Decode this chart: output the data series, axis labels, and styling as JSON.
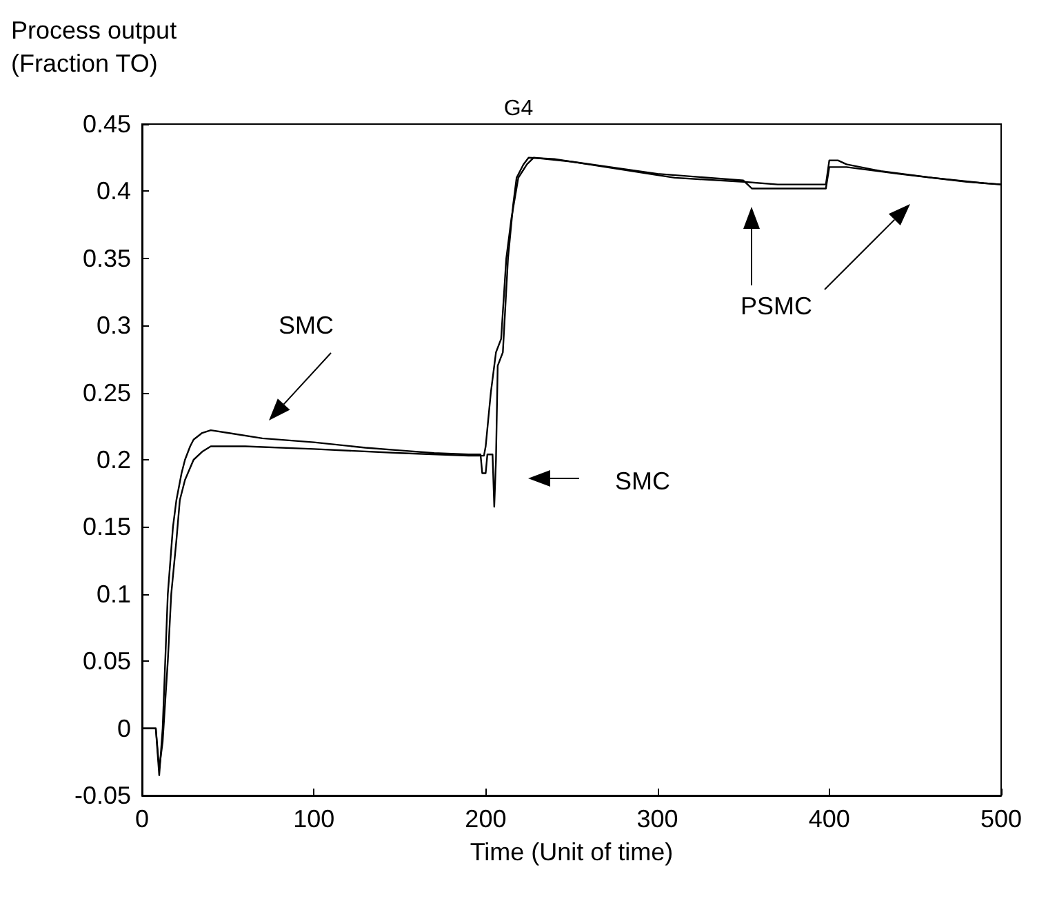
{
  "chart_data": {
    "type": "line",
    "title": "G4",
    "xlabel": "Time (Unit of time)",
    "ylabel": "Process output\n(Fraction TO)",
    "xlim": [
      0,
      500
    ],
    "xticks": [
      0,
      100,
      200,
      300,
      400,
      500
    ],
    "ylim": [
      -0.05,
      0.45
    ],
    "yticks": [
      -0.05,
      0,
      0.05,
      0.1,
      0.15,
      0.2,
      0.25,
      0.3,
      0.35,
      0.4,
      0.45
    ],
    "grid": false,
    "marker": "none",
    "line_style": "solid",
    "series": [
      {
        "color": "#000000",
        "x": [
          0,
          8,
          10,
          12,
          15,
          18,
          20,
          23,
          25,
          28,
          30,
          35,
          40,
          50,
          70,
          100,
          130,
          150,
          170,
          190,
          197,
          198,
          200,
          201,
          204,
          205,
          206,
          207,
          210,
          213,
          216,
          218,
          222,
          225,
          240,
          270,
          310,
          350,
          370,
          398,
          400,
          405,
          410,
          430,
          460,
          490,
          500
        ],
        "values": [
          0,
          0,
          -0.035,
          0.0,
          0.1,
          0.15,
          0.17,
          0.19,
          0.2,
          0.21,
          0.215,
          0.22,
          0.222,
          0.22,
          0.216,
          0.213,
          0.209,
          0.207,
          0.205,
          0.204,
          0.204,
          0.19,
          0.19,
          0.204,
          0.204,
          0.165,
          0.2,
          0.27,
          0.28,
          0.35,
          0.39,
          0.41,
          0.42,
          0.425,
          0.424,
          0.418,
          0.41,
          0.407,
          0.405,
          0.405,
          0.423,
          0.423,
          0.42,
          0.415,
          0.41,
          0.406,
          0.405
        ]
      },
      {
        "color": "#000000",
        "x": [
          0,
          8,
          10,
          12,
          15,
          17,
          20,
          22,
          25,
          30,
          35,
          40,
          60,
          100,
          150,
          190,
          199,
          200,
          203,
          206,
          209,
          212,
          215,
          219,
          224,
          228,
          250,
          300,
          350,
          355,
          398,
          400,
          404,
          410,
          440,
          480,
          500
        ],
        "values": [
          0,
          0,
          -0.03,
          -0.01,
          0.05,
          0.1,
          0.14,
          0.17,
          0.185,
          0.2,
          0.206,
          0.21,
          0.21,
          0.208,
          0.205,
          0.203,
          0.203,
          0.21,
          0.25,
          0.28,
          0.29,
          0.35,
          0.38,
          0.41,
          0.42,
          0.425,
          0.422,
          0.413,
          0.408,
          0.402,
          0.402,
          0.418,
          0.418,
          0.418,
          0.413,
          0.407,
          0.405
        ]
      }
    ],
    "annotations": [
      "SMC",
      "SMC",
      "PSMC"
    ]
  }
}
